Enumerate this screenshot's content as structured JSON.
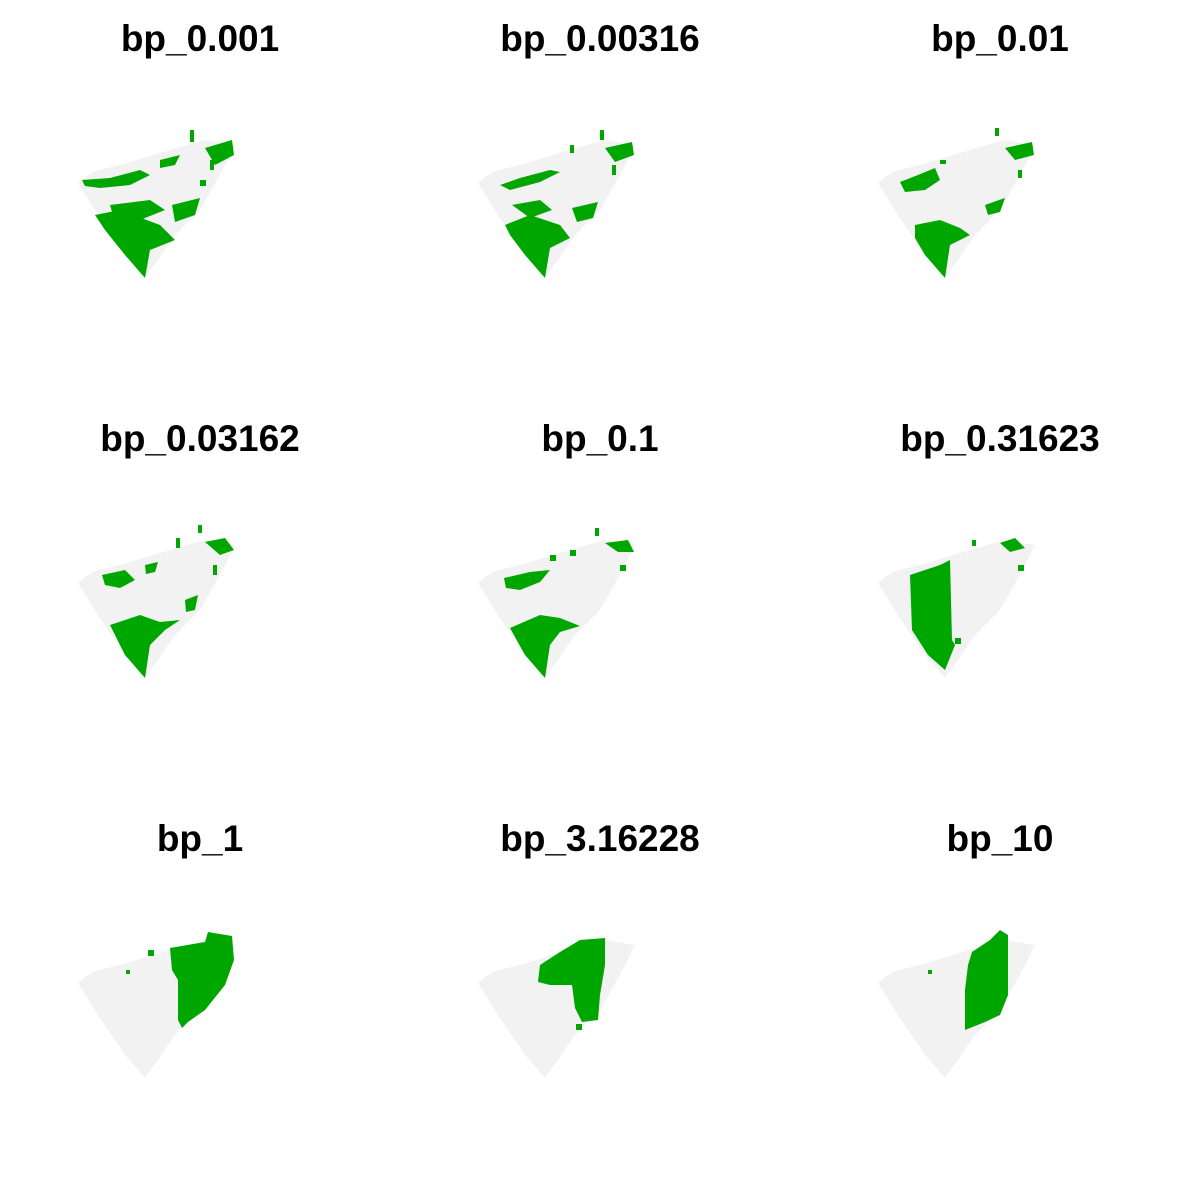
{
  "colors": {
    "selected": "#00a600",
    "background_region": "#f2f2f2"
  },
  "panels": [
    {
      "title": "bp_0.001"
    },
    {
      "title": "bp_0.00316"
    },
    {
      "title": "bp_0.01"
    },
    {
      "title": "bp_0.03162"
    },
    {
      "title": "bp_0.1"
    },
    {
      "title": "bp_0.31623"
    },
    {
      "title": "bp_1"
    },
    {
      "title": "bp_3.16228"
    },
    {
      "title": "bp_10"
    }
  ]
}
